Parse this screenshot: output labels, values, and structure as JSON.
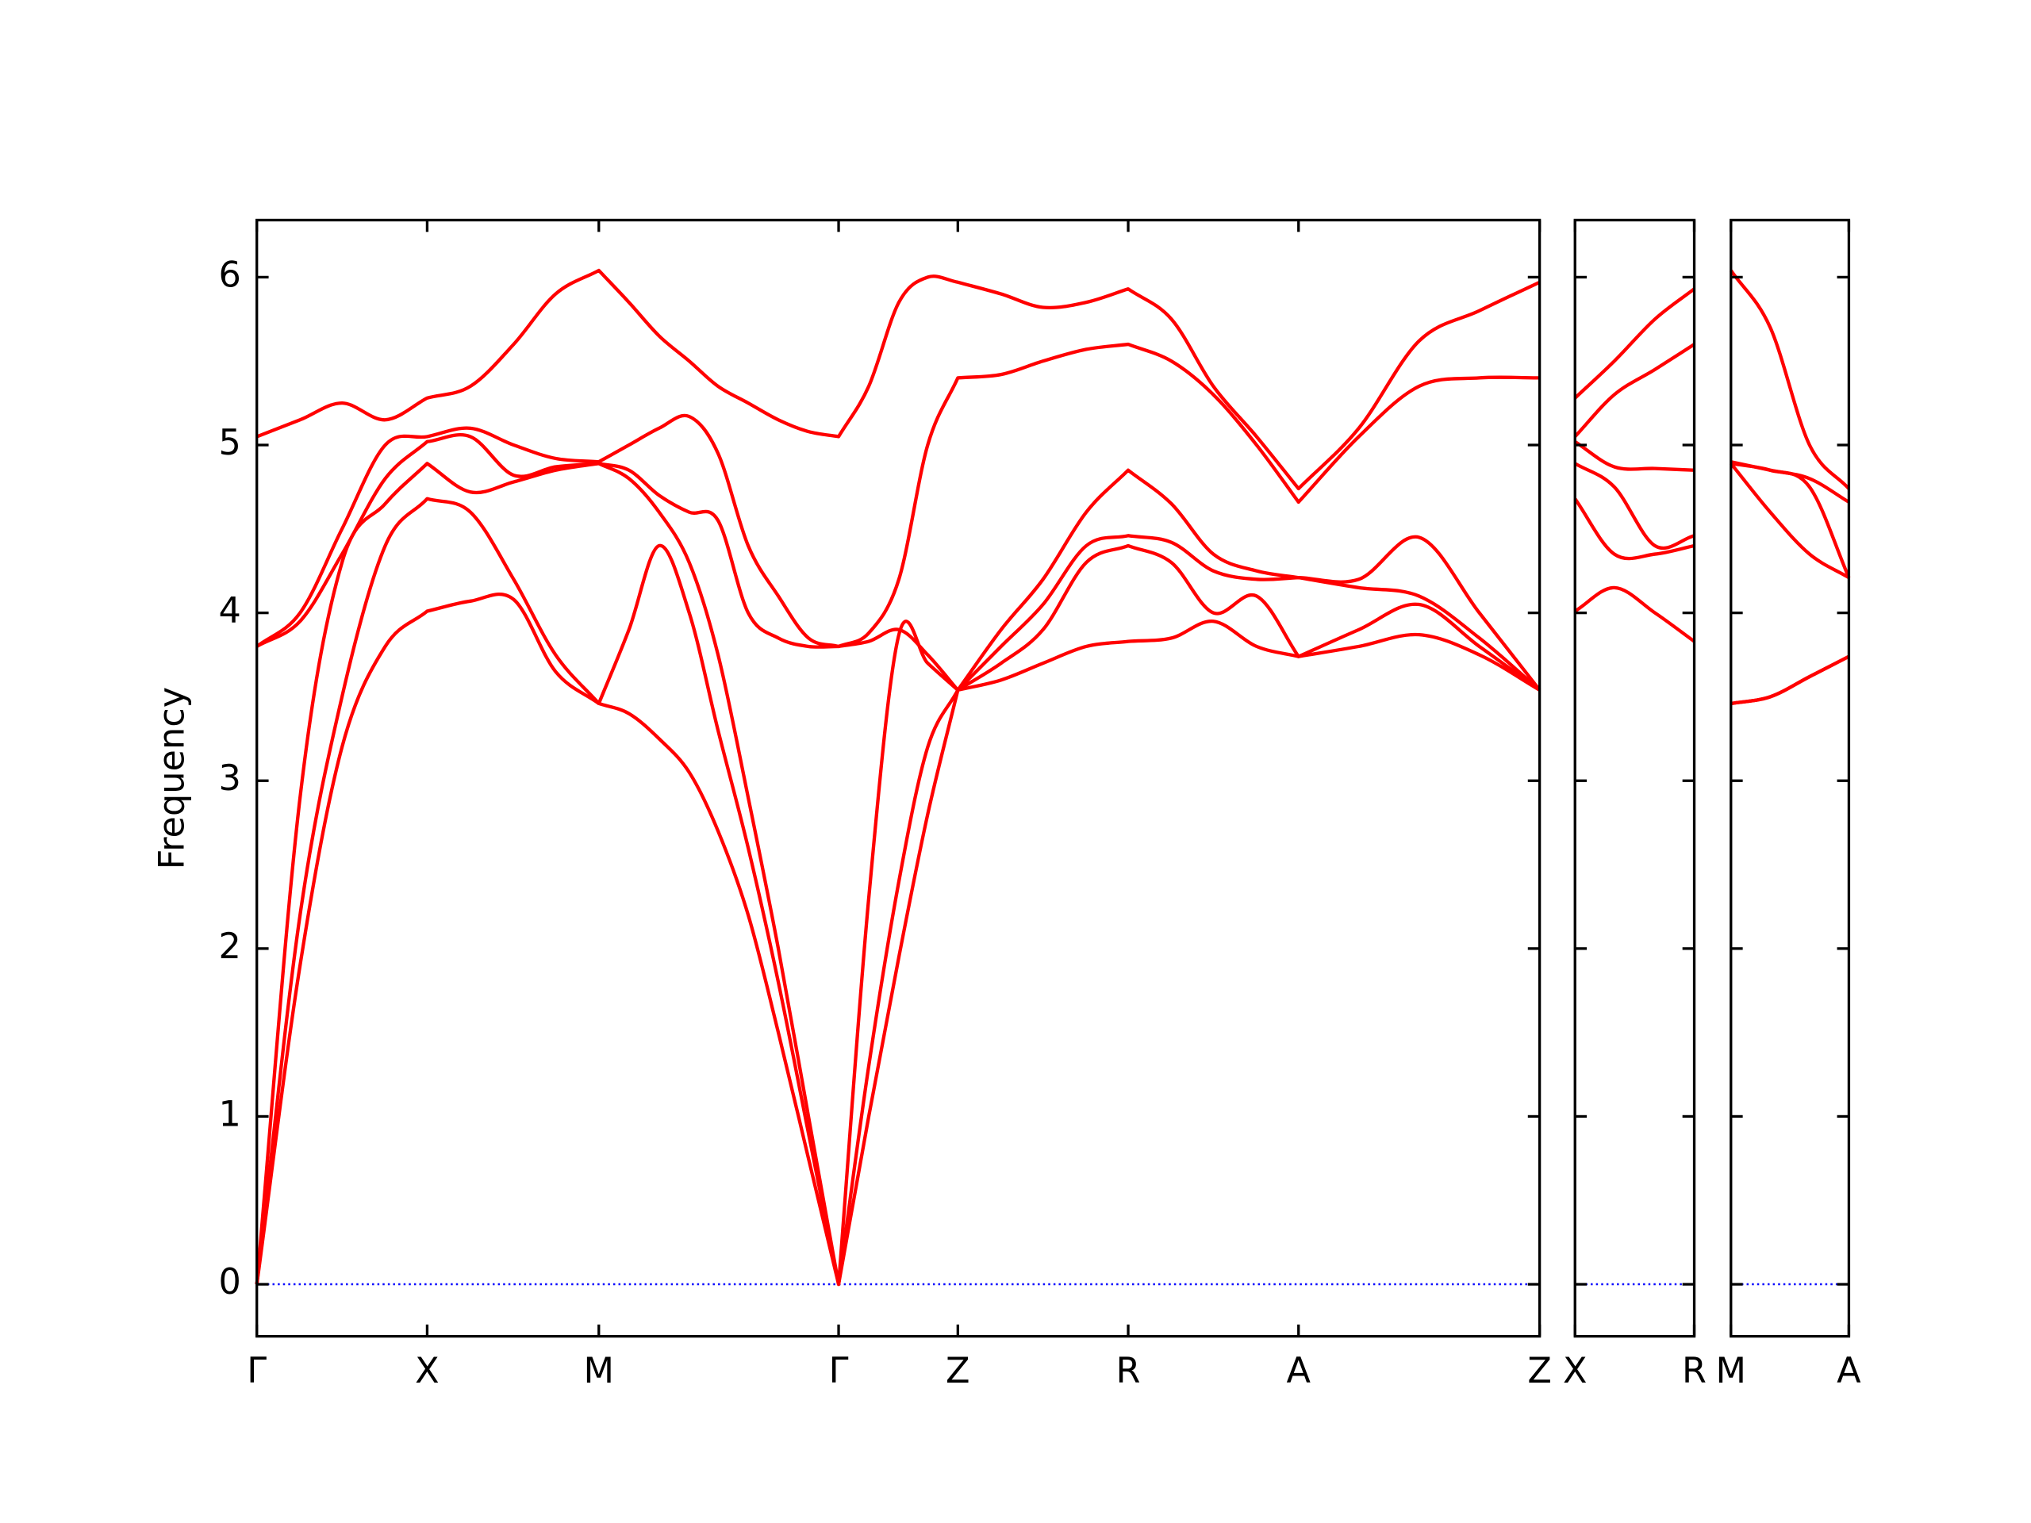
{
  "chart_data": [
    {
      "type": "line",
      "ylabel": "Frequency",
      "show_ytick_labels": true,
      "zero_line": 0,
      "zero_line_color": "#0000ff",
      "xlim": [
        0,
        9.79
      ],
      "ylim": [
        -0.31,
        6.34
      ],
      "yticks": [
        0,
        1,
        2,
        3,
        4,
        5,
        6
      ],
      "xticks": [
        {
          "value": 0,
          "label": "Γ"
        },
        {
          "value": 1.3,
          "label": "X"
        },
        {
          "value": 2.61,
          "label": "M"
        },
        {
          "value": 4.44,
          "label": "Γ"
        },
        {
          "value": 5.35,
          "label": "Z"
        },
        {
          "value": 6.65,
          "label": "R"
        },
        {
          "value": 7.95,
          "label": "A"
        },
        {
          "value": 9.79,
          "label": "Z"
        }
      ],
      "x": [
        0,
        0.33,
        0.65,
        0.98,
        1.3,
        1.63,
        1.96,
        2.28,
        2.61,
        2.84,
        3.07,
        3.3,
        3.52,
        3.75,
        3.98,
        4.21,
        4.44,
        4.67,
        4.9,
        5.12,
        5.35,
        5.68,
        6.0,
        6.33,
        6.65,
        6.98,
        7.3,
        7.63,
        7.95,
        8.41,
        8.87,
        9.33,
        9.79
      ],
      "series": [
        {
          "color": "#ff0000",
          "values": [
            0,
            1.9,
            3.2,
            3.8,
            4.01,
            4.07,
            4.08,
            3.65,
            3.46,
            3.4,
            3.25,
            3.05,
            2.7,
            2.2,
            1.5,
            0.75,
            0,
            1.0,
            1.95,
            2.8,
            3.54,
            3.6,
            3.7,
            3.8,
            3.83,
            3.85,
            3.95,
            3.8,
            3.74,
            3.8,
            3.87,
            3.75,
            3.54
          ]
        },
        {
          "color": "#ff0000",
          "values": [
            0,
            2.2,
            3.5,
            4.4,
            4.68,
            4.6,
            4.2,
            3.75,
            3.46,
            3.9,
            4.4,
            4.0,
            3.3,
            2.6,
            1.8,
            0.9,
            0,
            1.3,
            2.4,
            3.2,
            3.54,
            3.7,
            3.9,
            4.3,
            4.4,
            4.3,
            4.0,
            4.1,
            3.74,
            3.9,
            4.05,
            3.8,
            3.54
          ]
        },
        {
          "color": "#ff0000",
          "values": [
            0,
            2.9,
            4.3,
            4.65,
            4.89,
            4.72,
            4.78,
            4.85,
            4.89,
            4.8,
            4.6,
            4.3,
            3.75,
            2.9,
            2.0,
            1.0,
            0,
            2.3,
            3.87,
            3.7,
            3.54,
            3.8,
            4.05,
            4.4,
            4.46,
            4.42,
            4.25,
            4.2,
            4.21,
            4.15,
            4.1,
            3.85,
            3.54
          ]
        },
        {
          "color": "#ff0000",
          "values": [
            3.8,
            3.95,
            4.35,
            4.8,
            5.02,
            5.05,
            4.82,
            4.87,
            4.89,
            4.85,
            4.7,
            4.6,
            4.55,
            4.0,
            3.85,
            3.8,
            3.8,
            3.83,
            3.9,
            3.75,
            3.54,
            3.9,
            4.2,
            4.6,
            4.85,
            4.65,
            4.35,
            4.25,
            4.21,
            4.2,
            4.45,
            4.0,
            3.54
          ]
        },
        {
          "color": "#ff0000",
          "values": [
            3.8,
            4.0,
            4.5,
            5.0,
            5.05,
            5.1,
            5.0,
            4.92,
            4.9,
            5.0,
            5.1,
            5.17,
            4.95,
            4.4,
            4.1,
            3.85,
            3.8,
            3.88,
            4.2,
            5.0,
            5.4,
            5.42,
            5.5,
            5.57,
            5.6,
            5.5,
            5.3,
            5.0,
            4.66,
            5.05,
            5.35,
            5.4,
            5.4
          ]
        },
        {
          "color": "#ff0000",
          "values": [
            5.05,
            5.15,
            5.25,
            5.15,
            5.28,
            5.35,
            5.6,
            5.9,
            6.04,
            5.85,
            5.65,
            5.5,
            5.35,
            5.25,
            5.15,
            5.08,
            5.05,
            5.35,
            5.85,
            6.0,
            5.97,
            5.9,
            5.82,
            5.85,
            5.93,
            5.75,
            5.35,
            5.05,
            4.74,
            5.1,
            5.62,
            5.8,
            5.97
          ]
        }
      ]
    },
    {
      "type": "line",
      "show_ytick_labels": false,
      "zero_line": 0,
      "zero_line_color": "#0000ff",
      "xlim": [
        0,
        0.91
      ],
      "ylim": [
        -0.31,
        6.34
      ],
      "yticks": [
        0,
        1,
        2,
        3,
        4,
        5,
        6
      ],
      "xticks": [
        {
          "value": 0,
          "label": "X"
        },
        {
          "value": 0.91,
          "label": "R"
        }
      ],
      "x": [
        0,
        0.3,
        0.61,
        0.91
      ],
      "series": [
        {
          "color": "#ff0000",
          "values": [
            4.01,
            4.15,
            4.0,
            3.83
          ]
        },
        {
          "color": "#ff0000",
          "values": [
            4.68,
            4.35,
            4.35,
            4.4
          ]
        },
        {
          "color": "#ff0000",
          "values": [
            4.89,
            4.75,
            4.4,
            4.46
          ]
        },
        {
          "color": "#ff0000",
          "values": [
            5.02,
            4.87,
            4.86,
            4.85
          ]
        },
        {
          "color": "#ff0000",
          "values": [
            5.05,
            5.3,
            5.45,
            5.6
          ]
        },
        {
          "color": "#ff0000",
          "values": [
            5.28,
            5.5,
            5.75,
            5.93
          ]
        }
      ]
    },
    {
      "type": "line",
      "show_ytick_labels": false,
      "zero_line": 0,
      "zero_line_color": "#0000ff",
      "xlim": [
        0,
        0.9
      ],
      "ylim": [
        -0.31,
        6.34
      ],
      "yticks": [
        0,
        1,
        2,
        3,
        4,
        5,
        6
      ],
      "xticks": [
        {
          "value": 0,
          "label": "M"
        },
        {
          "value": 0.9,
          "label": "A"
        }
      ],
      "x": [
        0,
        0.3,
        0.6,
        0.9
      ],
      "series": [
        {
          "color": "#ff0000",
          "values": [
            3.46,
            3.5,
            3.62,
            3.74
          ]
        },
        {
          "color": "#ff0000",
          "values": [
            3.46,
            3.5,
            3.62,
            3.74
          ]
        },
        {
          "color": "#ff0000",
          "values": [
            4.89,
            4.6,
            4.35,
            4.21
          ]
        },
        {
          "color": "#ff0000",
          "values": [
            4.89,
            4.85,
            4.75,
            4.21
          ]
        },
        {
          "color": "#ff0000",
          "values": [
            4.9,
            4.85,
            4.8,
            4.66
          ]
        },
        {
          "color": "#ff0000",
          "values": [
            6.04,
            5.7,
            5.0,
            4.74
          ]
        }
      ]
    }
  ]
}
